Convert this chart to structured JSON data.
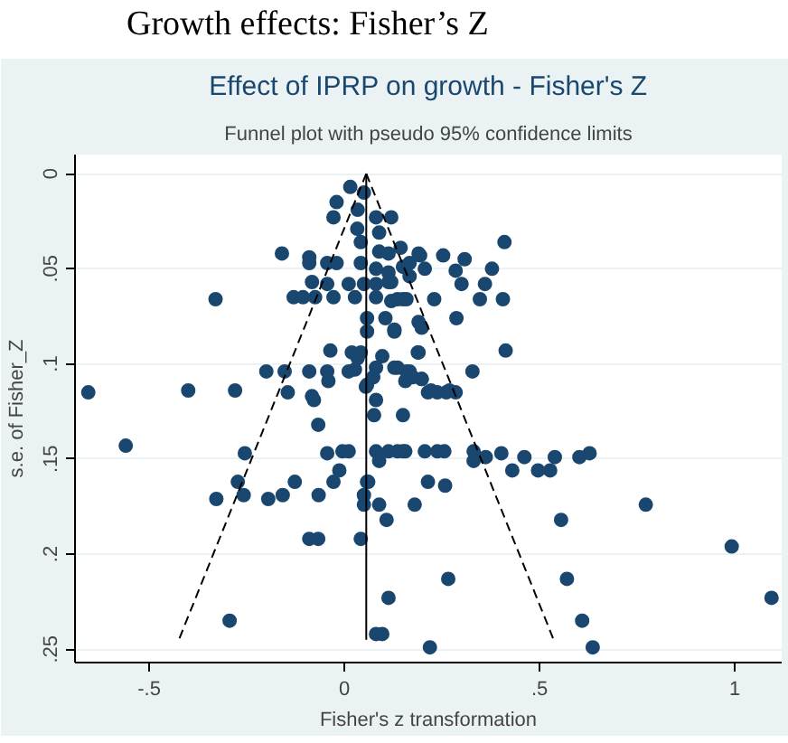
{
  "chart_data": {
    "type": "scatter",
    "title": "Effect of IPRP on growth - Fisher's Z",
    "subtitle": "Funnel plot with pseudo 95% confidence limits",
    "xlabel": "Fisher's z transformation",
    "ylabel": "s.e. of Fisher_Z",
    "annotations": [
      "Growth effects: Fisher’s Z"
    ],
    "xlim": [
      -0.69,
      1.12
    ],
    "ylim": [
      0.257,
      -0.01
    ],
    "xticks": [
      {
        "value": -0.5,
        "label": "-.5"
      },
      0,
      {
        "value": 0.5,
        "label": ".5"
      },
      1
    ],
    "yticks": [
      0,
      {
        "value": 0.05,
        "label": ".05"
      },
      {
        "value": 0.1,
        "label": ".1"
      },
      {
        "value": 0.15,
        "label": ".15"
      },
      {
        "value": 0.2,
        "label": ".2"
      },
      {
        "value": 0.25,
        "label": ".25"
      }
    ],
    "grid": "y",
    "marker": "circle",
    "series": [
      {
        "color": "#1a476f",
        "x": [
          0.015,
          0.05,
          -0.02,
          -0.028,
          0.034,
          0.081,
          0.12,
          0.033,
          0.089,
          -0.16,
          -0.09,
          -0.09,
          -0.044,
          -0.02,
          0.042,
          0.042,
          0.089,
          0.113,
          0.144,
          0.19,
          0.167,
          0.081,
          0.113,
          -0.083,
          -0.044,
          0.011,
          0.05,
          0.081,
          0.12,
          -0.13,
          -0.106,
          -0.075,
          -0.028,
          0.027,
          0.081,
          0.136,
          0.159,
          -0.33,
          0.058,
          0.105,
          0.058,
          0.128,
          0.19,
          -0.036,
          0.019,
          0.042,
          0.097,
          0.19,
          0.034,
          -0.2,
          -0.153,
          -0.09,
          -0.044,
          0.011,
          0.027,
          0.081,
          0.128,
          0.159,
          0.074,
          0.175,
          -0.656,
          -0.4,
          -0.28,
          -0.145,
          -0.083,
          0.41,
          0.253,
          0.308,
          0.194,
          0.378,
          0.285,
          0.206,
          0.3,
          0.36,
          0.15,
          0.167,
          0.113,
          0.23,
          0.347,
          0.406,
          0.15,
          0.12,
          0.287,
          0.198,
          0.128,
          0.413,
          0.188,
          0.328,
          0.136,
          0.167,
          0.198,
          0.222,
          0.269,
          -0.078,
          -0.041,
          0.055,
          0.081,
          0.076,
          0.15,
          -0.067,
          -0.56,
          -0.255,
          -0.044,
          -0.005,
          0.011,
          0.081,
          0.113,
          0.15,
          0.089,
          -0.013,
          -0.273,
          -0.127,
          -0.028,
          0.061,
          -0.328,
          -0.258,
          -0.195,
          -0.158,
          -0.066,
          0.05,
          0.05,
          0.089,
          0.108,
          0.18,
          -0.09,
          -0.067,
          0.042,
          0.113,
          -0.294,
          0.081,
          0.097,
          0.058,
          0.156,
          0.198,
          0.214,
          0.238,
          0.261,
          0.285,
          0.136,
          0.156,
          0.206,
          0.238,
          0.256,
          0.331,
          0.331,
          0.362,
          0.402,
          0.461,
          0.539,
          0.602,
          0.628,
          0.43,
          0.496,
          0.527,
          0.058,
          0.214,
          0.258,
          0.772,
          0.555,
          0.992,
          0.266,
          0.57,
          1.094,
          0.609,
          0.219,
          0.636
        ],
        "values": [
          0.007,
          0.01,
          0.015,
          0.023,
          0.019,
          0.023,
          0.023,
          0.029,
          0.031,
          0.042,
          0.044,
          0.047,
          0.047,
          0.047,
          0.036,
          0.047,
          0.041,
          0.042,
          0.039,
          0.042,
          0.047,
          0.05,
          0.052,
          0.057,
          0.058,
          0.058,
          0.058,
          0.058,
          0.057,
          0.065,
          0.065,
          0.065,
          0.065,
          0.065,
          0.065,
          0.066,
          0.066,
          0.066,
          0.076,
          0.076,
          0.083,
          0.083,
          0.078,
          0.093,
          0.094,
          0.094,
          0.096,
          0.094,
          0.097,
          0.104,
          0.104,
          0.104,
          0.104,
          0.104,
          0.103,
          0.102,
          0.102,
          0.104,
          0.107,
          0.107,
          0.115,
          0.114,
          0.114,
          0.115,
          0.117,
          0.036,
          0.043,
          0.045,
          0.043,
          0.05,
          0.051,
          0.05,
          0.058,
          0.058,
          0.049,
          0.054,
          0.057,
          0.066,
          0.066,
          0.066,
          0.066,
          0.067,
          0.076,
          0.081,
          0.082,
          0.093,
          0.094,
          0.104,
          0.102,
          0.104,
          0.108,
          0.114,
          0.114,
          0.119,
          0.109,
          0.112,
          0.119,
          0.127,
          0.127,
          0.132,
          0.143,
          0.147,
          0.147,
          0.146,
          0.146,
          0.146,
          0.146,
          0.146,
          0.151,
          0.156,
          0.162,
          0.162,
          0.162,
          0.162,
          0.171,
          0.169,
          0.171,
          0.169,
          0.169,
          0.169,
          0.174,
          0.174,
          0.182,
          0.174,
          0.192,
          0.192,
          0.192,
          0.223,
          0.235,
          0.242,
          0.242,
          0.111,
          0.109,
          0.108,
          0.115,
          0.115,
          0.115,
          0.115,
          0.146,
          0.146,
          0.146,
          0.146,
          0.146,
          0.146,
          0.151,
          0.149,
          0.147,
          0.149,
          0.149,
          0.149,
          0.147,
          0.156,
          0.156,
          0.156,
          0.162,
          0.162,
          0.164,
          0.174,
          0.182,
          0.196,
          0.213,
          0.213,
          0.223,
          0.235,
          0.249,
          0.249
        ]
      },
      {
        "type": "line",
        "color": "#000000",
        "line_style": "dashed",
        "marker": "none",
        "x": [
          0.056,
          -0.424
        ],
        "values": [
          0,
          0.245
        ]
      },
      {
        "type": "line",
        "color": "#000000",
        "line_style": "dashed",
        "marker": "none",
        "x": [
          0.056,
          0.536
        ],
        "values": [
          0,
          0.245
        ]
      },
      {
        "type": "line",
        "color": "#000000",
        "line_style": "solid",
        "marker": "none",
        "x": [
          0.056,
          0.056
        ],
        "values": [
          0,
          0.245
        ]
      }
    ]
  }
}
